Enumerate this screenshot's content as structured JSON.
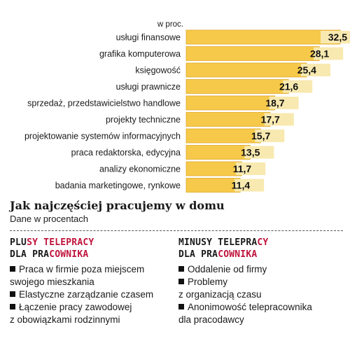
{
  "chart_data": {
    "type": "bar",
    "orientation": "horizontal",
    "unit_label": "w proc.",
    "categories": [
      "usługi finansowe",
      "grafika komputerowa",
      "księgowość",
      "usługi prawnicze",
      "sprzedaż, przedstawicielstwo handlowe",
      "projekty techniczne",
      "projektowanie systemów informacyjnych",
      "praca redaktorska, edycyjna",
      "analizy ekonomiczne",
      "badania marketingowe, rynkowe"
    ],
    "values": [
      32.5,
      28.1,
      25.4,
      21.6,
      18.7,
      17.7,
      15.7,
      13.5,
      11.7,
      11.4
    ],
    "value_labels": [
      "32,5",
      "28,1",
      "25,4",
      "21,6",
      "18,7",
      "17,7",
      "15,7",
      "13,5",
      "11,7",
      "11,4"
    ],
    "xlim": [
      0,
      32.5
    ],
    "grid": false,
    "colors": {
      "bar": "#f6c94a",
      "bar_edge": "#e0a826",
      "label_bg": "#f8e9b0"
    }
  },
  "section": {
    "title": "Jak najczęściej pracujemy w domu",
    "subtitle": "Dane w procentach"
  },
  "plusy": {
    "title_line1_pre": "PLU",
    "title_line1_accent": "SY TELEPRACY",
    "title_line2_pre": "DLA PRA",
    "title_line2_accent": "COWNIKA",
    "items": [
      "Praca w firmie poza miejscem",
      "swojego mieszkania",
      "Elastyczne zarządzanie czasem",
      "Łączenie pracy zawodowej",
      "z obowiązkami rodzinnymi"
    ]
  },
  "minusy": {
    "title_line1_pre": "MINUSY TELEPRA",
    "title_line1_accent": "CY",
    "title_line2_pre": "DLA PRA",
    "title_line2_accent": "COWNIKA",
    "items": [
      "Oddalenie od firmy",
      "Problemy",
      "z organizacją czasu",
      "Anonimowość telepracownika",
      "dla pracodawcy"
    ]
  },
  "colors": {
    "accent": "#c0143c"
  }
}
